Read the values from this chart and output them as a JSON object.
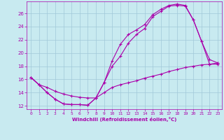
{
  "xlabel": "Windchill (Refroidissement éolien,°C)",
  "bg_color": "#c8eaf0",
  "grid_color": "#a0c8d8",
  "line_color": "#aa00aa",
  "xlim": [
    -0.5,
    23.5
  ],
  "ylim": [
    11.5,
    27.8
  ],
  "xticks": [
    0,
    1,
    2,
    3,
    4,
    5,
    6,
    7,
    8,
    9,
    10,
    11,
    12,
    13,
    14,
    15,
    16,
    17,
    18,
    19,
    20,
    21,
    22,
    23
  ],
  "yticks": [
    12,
    14,
    16,
    18,
    20,
    22,
    24,
    26
  ],
  "series": [
    {
      "x": [
        0,
        1,
        2,
        3,
        4,
        5,
        6,
        7,
        8,
        9,
        10,
        11,
        12,
        13,
        14,
        15,
        16,
        17,
        18,
        19,
        20,
        21,
        22,
        23
      ],
      "y": [
        16.3,
        15.2,
        14.0,
        13.0,
        12.3,
        12.2,
        12.2,
        12.1,
        13.2,
        15.5,
        18.0,
        19.5,
        21.5,
        22.8,
        23.7,
        25.5,
        26.3,
        27.1,
        27.2,
        27.1,
        25.0,
        21.8,
        19.0,
        18.5
      ]
    },
    {
      "x": [
        0,
        1,
        2,
        3,
        4,
        5,
        6,
        7,
        8,
        9,
        10,
        11,
        12,
        13,
        14,
        15,
        16,
        17,
        18,
        19,
        20,
        21,
        22,
        23
      ],
      "y": [
        16.3,
        15.2,
        14.0,
        13.0,
        12.3,
        12.2,
        12.2,
        12.1,
        13.2,
        15.5,
        18.8,
        21.3,
        22.8,
        23.5,
        24.3,
        25.8,
        26.6,
        27.2,
        27.4,
        27.2,
        25.0,
        21.8,
        18.3,
        18.3
      ]
    },
    {
      "x": [
        0,
        1,
        2,
        3,
        4,
        5,
        6,
        7,
        8,
        9,
        10,
        11,
        12,
        13,
        14,
        15,
        16,
        17,
        18,
        19,
        20,
        21,
        22,
        23
      ],
      "y": [
        16.3,
        15.2,
        14.8,
        14.2,
        13.8,
        13.5,
        13.3,
        13.2,
        13.2,
        14.0,
        14.8,
        15.2,
        15.5,
        15.8,
        16.2,
        16.5,
        16.8,
        17.2,
        17.5,
        17.8,
        18.0,
        18.2,
        18.3,
        18.5
      ]
    }
  ]
}
